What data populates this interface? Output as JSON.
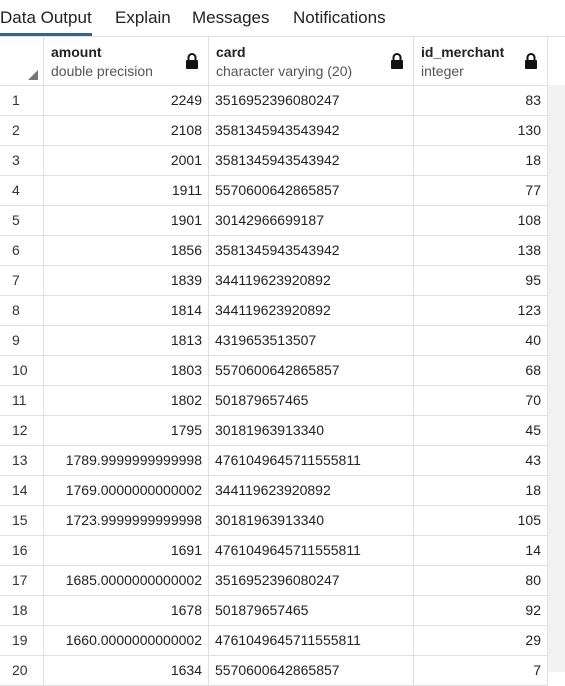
{
  "tabs": [
    {
      "label": "Data Output"
    },
    {
      "label": "Explain"
    },
    {
      "label": "Messages"
    },
    {
      "label": "Notifications"
    }
  ],
  "columns": [
    {
      "name": "amount",
      "type": "double precision"
    },
    {
      "name": "card",
      "type": "character varying (20)"
    },
    {
      "name": "id_merchant",
      "type": "integer"
    }
  ],
  "rows": [
    {
      "n": "1",
      "amount": "2249",
      "card": "3516952396080247",
      "id_merchant": "83"
    },
    {
      "n": "2",
      "amount": "2108",
      "card": "3581345943543942",
      "id_merchant": "130"
    },
    {
      "n": "3",
      "amount": "2001",
      "card": "3581345943543942",
      "id_merchant": "18"
    },
    {
      "n": "4",
      "amount": "1911",
      "card": "5570600642865857",
      "id_merchant": "77"
    },
    {
      "n": "5",
      "amount": "1901",
      "card": "30142966699187",
      "id_merchant": "108"
    },
    {
      "n": "6",
      "amount": "1856",
      "card": "3581345943543942",
      "id_merchant": "138"
    },
    {
      "n": "7",
      "amount": "1839",
      "card": "344119623920892",
      "id_merchant": "95"
    },
    {
      "n": "8",
      "amount": "1814",
      "card": "344119623920892",
      "id_merchant": "123"
    },
    {
      "n": "9",
      "amount": "1813",
      "card": "4319653513507",
      "id_merchant": "40"
    },
    {
      "n": "10",
      "amount": "1803",
      "card": "5570600642865857",
      "id_merchant": "68"
    },
    {
      "n": "11",
      "amount": "1802",
      "card": "501879657465",
      "id_merchant": "70"
    },
    {
      "n": "12",
      "amount": "1795",
      "card": "30181963913340",
      "id_merchant": "45"
    },
    {
      "n": "13",
      "amount": "1789.9999999999998",
      "card": "4761049645711555811",
      "id_merchant": "43"
    },
    {
      "n": "14",
      "amount": "1769.0000000000002",
      "card": "344119623920892",
      "id_merchant": "18"
    },
    {
      "n": "15",
      "amount": "1723.9999999999998",
      "card": "30181963913340",
      "id_merchant": "105"
    },
    {
      "n": "16",
      "amount": "1691",
      "card": "4761049645711555811",
      "id_merchant": "14"
    },
    {
      "n": "17",
      "amount": "1685.0000000000002",
      "card": "3516952396080247",
      "id_merchant": "80"
    },
    {
      "n": "18",
      "amount": "1678",
      "card": "501879657465",
      "id_merchant": "92"
    },
    {
      "n": "19",
      "amount": "1660.0000000000002",
      "card": "4761049645711555811",
      "id_merchant": "29"
    },
    {
      "n": "20",
      "amount": "1634",
      "card": "5570600642865857",
      "id_merchant": "7"
    }
  ],
  "colors": {
    "accent": "#326690",
    "border": "#dde0e6",
    "scroll_track": "#f1f1f1"
  },
  "icons": {
    "header_lock": "lock-icon",
    "select_all": "corner-triangle-icon"
  }
}
